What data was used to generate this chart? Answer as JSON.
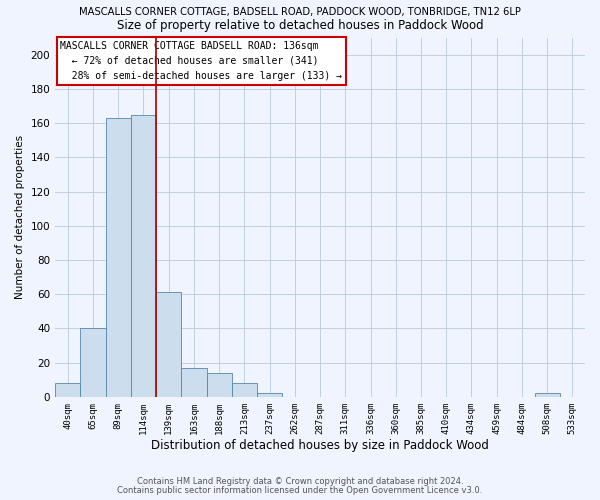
{
  "title_top": "MASCALLS CORNER COTTAGE, BADSELL ROAD, PADDOCK WOOD, TONBRIDGE, TN12 6LP",
  "title_sub": "Size of property relative to detached houses in Paddock Wood",
  "xlabel": "Distribution of detached houses by size in Paddock Wood",
  "ylabel": "Number of detached properties",
  "bin_labels": [
    "40sqm",
    "65sqm",
    "89sqm",
    "114sqm",
    "139sqm",
    "163sqm",
    "188sqm",
    "213sqm",
    "237sqm",
    "262sqm",
    "287sqm",
    "311sqm",
    "336sqm",
    "360sqm",
    "385sqm",
    "410sqm",
    "434sqm",
    "459sqm",
    "484sqm",
    "508sqm",
    "533sqm"
  ],
  "bar_values": [
    8,
    40,
    163,
    165,
    61,
    17,
    14,
    8,
    2,
    0,
    0,
    0,
    0,
    0,
    0,
    0,
    0,
    0,
    0,
    2,
    0
  ],
  "bar_color": "#ccdded",
  "bar_edge_color": "#5588aa",
  "subject_line_color": "#aa0000",
  "ylim": [
    0,
    210
  ],
  "yticks": [
    0,
    20,
    40,
    60,
    80,
    100,
    120,
    140,
    160,
    180,
    200
  ],
  "annotation_title": "MASCALLS CORNER COTTAGE BADSELL ROAD: 136sqm",
  "annotation_line1": "← 72% of detached houses are smaller (341)",
  "annotation_line2": "28% of semi-detached houses are larger (133) →",
  "footnote1": "Contains HM Land Registry data © Crown copyright and database right 2024.",
  "footnote2": "Contains public sector information licensed under the Open Government Licence v3.0.",
  "background_color": "#f0f4ff",
  "grid_color": "#c0d0e0"
}
